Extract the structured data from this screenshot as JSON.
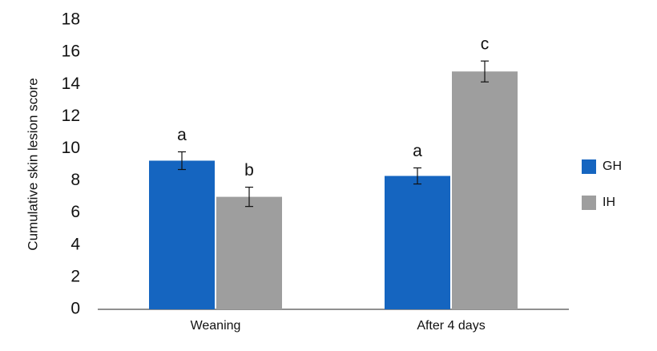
{
  "chart_data": {
    "type": "bar",
    "y_label": "Cumulative skin lesion score",
    "categories": [
      "Weaning",
      "After 4 days"
    ],
    "series": [
      {
        "name": "GH",
        "color": "#1565c0",
        "values": [
          9.25,
          8.3
        ],
        "errors": [
          0.55,
          0.5
        ],
        "letters": [
          "a",
          "a"
        ]
      },
      {
        "name": "IH",
        "color": "#9e9e9e",
        "values": [
          7.0,
          14.8
        ],
        "errors": [
          0.6,
          0.65
        ],
        "letters": [
          "b",
          "c"
        ]
      }
    ],
    "ylim": [
      0,
      18
    ],
    "yticks": [
      0,
      2,
      4,
      6,
      8,
      10,
      12,
      14,
      16,
      18
    ],
    "grid": false,
    "legend": "right"
  }
}
